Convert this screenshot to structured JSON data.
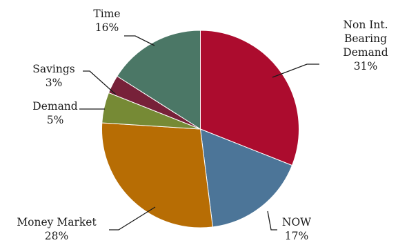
{
  "chart_data": {
    "type": "pie",
    "title": "",
    "start_at": "12 o'clock",
    "direction": "clockwise",
    "legend": "none",
    "slices": [
      {
        "label": "Non Int. Bearing Demand",
        "label_lines": [
          "Non Int.",
          "Bearing",
          "Demand"
        ],
        "value": 31,
        "value_label": "31%",
        "color": "#AC0C2E"
      },
      {
        "label": "NOW",
        "label_lines": [
          "NOW"
        ],
        "value": 17,
        "value_label": "17%",
        "color": "#4C7598"
      },
      {
        "label": "Money Market",
        "label_lines": [
          "Money Market"
        ],
        "value": 28,
        "value_label": "28%",
        "color": "#B76D04"
      },
      {
        "label": "Demand",
        "label_lines": [
          "Demand"
        ],
        "value": 5,
        "value_label": "5%",
        "color": "#768A35"
      },
      {
        "label": "Savings",
        "label_lines": [
          "Savings"
        ],
        "value": 3,
        "value_label": "3%",
        "color": "#772139"
      },
      {
        "label": "Time",
        "label_lines": [
          "Time"
        ],
        "value": 16,
        "value_label": "16%",
        "color": "#4B7766"
      }
    ]
  }
}
